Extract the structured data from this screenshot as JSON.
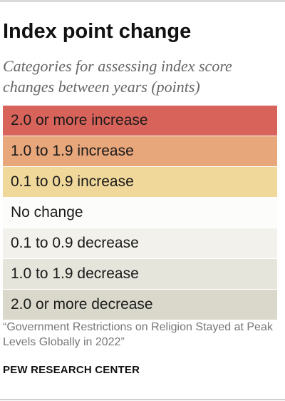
{
  "title": "Index point change",
  "subtitle": "Categories for assessing index score changes between years (points)",
  "legend": {
    "items": [
      {
        "label": "2.0 or more increase",
        "color": "#d8635a"
      },
      {
        "label": "1.0 to 1.9 increase",
        "color": "#e8a67b"
      },
      {
        "label": "0.1 to 0.9 increase",
        "color": "#f0d89a"
      },
      {
        "label": "No change",
        "color": "#fcfcfa"
      },
      {
        "label": "0.1 to 0.9 decrease",
        "color": "#f2f1ec"
      },
      {
        "label": "1.0 to 1.9 decrease",
        "color": "#e6e5dc"
      },
      {
        "label": "2.0 or more decrease",
        "color": "#d9d8ca"
      }
    ]
  },
  "source": "“Government Restrictions on Religion Stayed at Peak Levels Globally in 2022”",
  "credit": "PEW RESEARCH CENTER"
}
